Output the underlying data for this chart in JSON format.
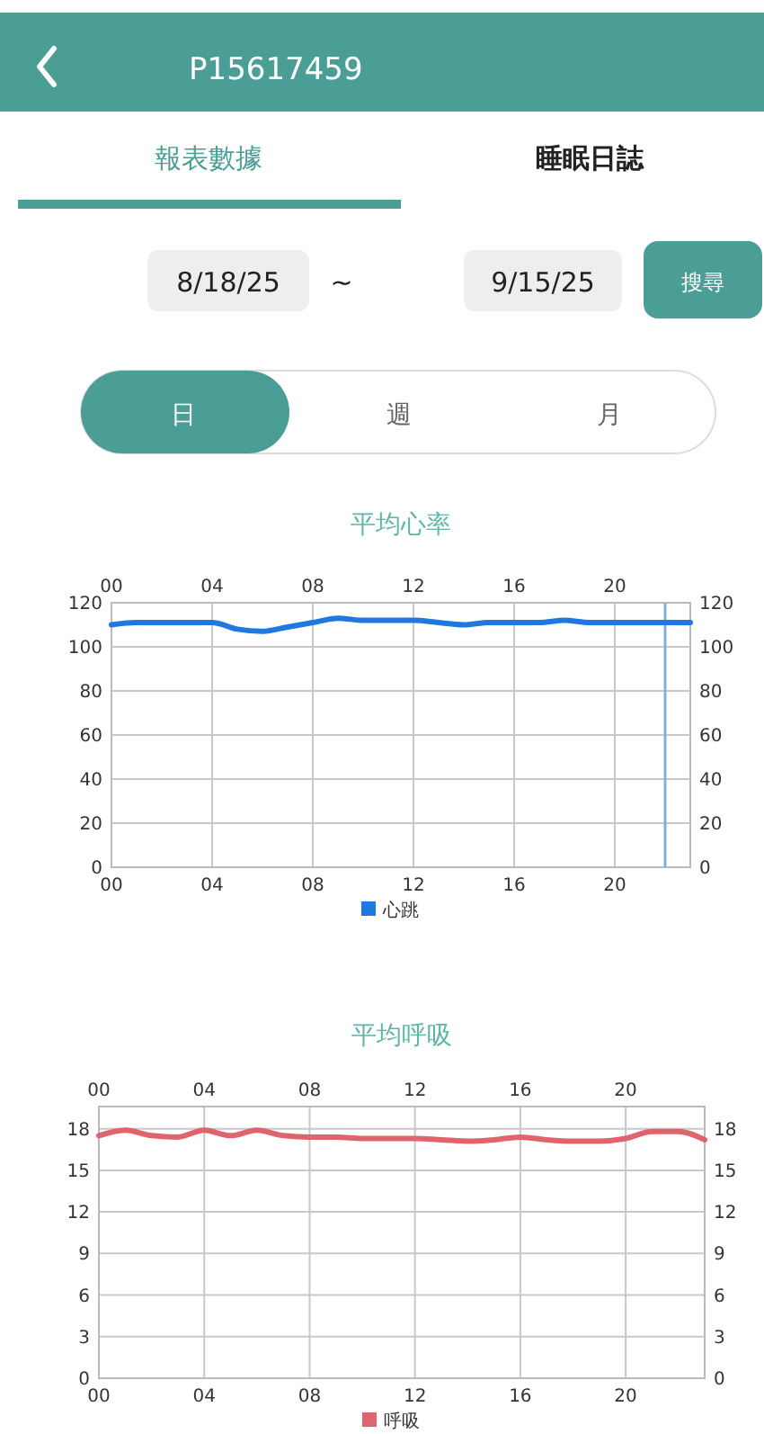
{
  "chart_data": [
    {
      "type": "other",
      "annotations": [
        "P15617459",
        "報表數據",
        "睡眠日誌",
        "8/18/25",
        "~",
        "9/15/25",
        "搜尋",
        "日",
        "週",
        "月"
      ]
    },
    {
      "type": "line",
      "title": "平均心率",
      "x": [
        0,
        1,
        2,
        3,
        4,
        5,
        6,
        7,
        8,
        9,
        10,
        11,
        12,
        13,
        14,
        15,
        16,
        17,
        18,
        19,
        20,
        21,
        22,
        23
      ],
      "series": [
        {
          "name": "心跳",
          "color": "#1f78e0",
          "values": [
            110,
            111,
            111,
            111,
            111,
            108,
            107,
            109,
            111,
            113,
            112,
            112,
            112,
            111,
            110,
            111,
            111,
            111,
            112,
            111,
            111,
            111,
            111,
            111
          ]
        }
      ],
      "xlim": [
        0,
        23
      ],
      "xticks": [
        {
          "value": 0,
          "label": "00"
        },
        {
          "value": 4,
          "label": "04"
        },
        {
          "value": 8,
          "label": "08"
        },
        12,
        16,
        20
      ],
      "x2lim": [
        0,
        23
      ],
      "x2ticks": [
        {
          "value": 0,
          "label": "00"
        },
        {
          "value": 4,
          "label": "04"
        },
        {
          "value": 8,
          "label": "08"
        },
        12,
        16,
        20
      ],
      "ylim": [
        0,
        120
      ],
      "yticks": [
        0,
        20,
        40,
        60,
        80,
        100,
        120
      ],
      "y2lim": [
        0,
        120
      ],
      "y2ticks": [
        0,
        20,
        40,
        60,
        80,
        100,
        120
      ],
      "ref_lines": [
        {
          "axis": "x",
          "value": 22,
          "color": "#7fb0e0"
        }
      ],
      "grid": true,
      "legend": "bottom"
    },
    {
      "type": "line",
      "title": "平均呼吸",
      "x": [
        0,
        1,
        2,
        3,
        4,
        5,
        6,
        7,
        8,
        9,
        10,
        11,
        12,
        13,
        14,
        15,
        16,
        17,
        18,
        19,
        20,
        21,
        22,
        23
      ],
      "series": [
        {
          "name": "呼吸",
          "color": "#e0646e",
          "values": [
            17.5,
            17.9,
            17.5,
            17.4,
            17.9,
            17.5,
            17.9,
            17.5,
            17.4,
            17.4,
            17.3,
            17.3,
            17.3,
            17.2,
            17.1,
            17.2,
            17.4,
            17.2,
            17.1,
            17.1,
            17.3,
            17.8,
            17.8,
            17.2
          ]
        }
      ],
      "xlim": [
        0,
        23
      ],
      "xticks": [
        {
          "value": 0,
          "label": "00"
        },
        {
          "value": 4,
          "label": "04"
        },
        {
          "value": 8,
          "label": "08"
        },
        12,
        16,
        20
      ],
      "x2lim": [
        0,
        23
      ],
      "x2ticks": [
        {
          "value": 0,
          "label": "00"
        },
        {
          "value": 4,
          "label": "04"
        },
        {
          "value": 8,
          "label": "08"
        },
        12,
        16,
        20
      ],
      "ylim": [
        0,
        19.6
      ],
      "yticks": [
        0,
        3,
        6,
        9,
        12,
        15,
        18
      ],
      "y2lim": [
        0,
        19.6
      ],
      "y2ticks": [
        0,
        3,
        6,
        9,
        12,
        15,
        18
      ],
      "grid": true,
      "legend": "bottom"
    }
  ]
}
